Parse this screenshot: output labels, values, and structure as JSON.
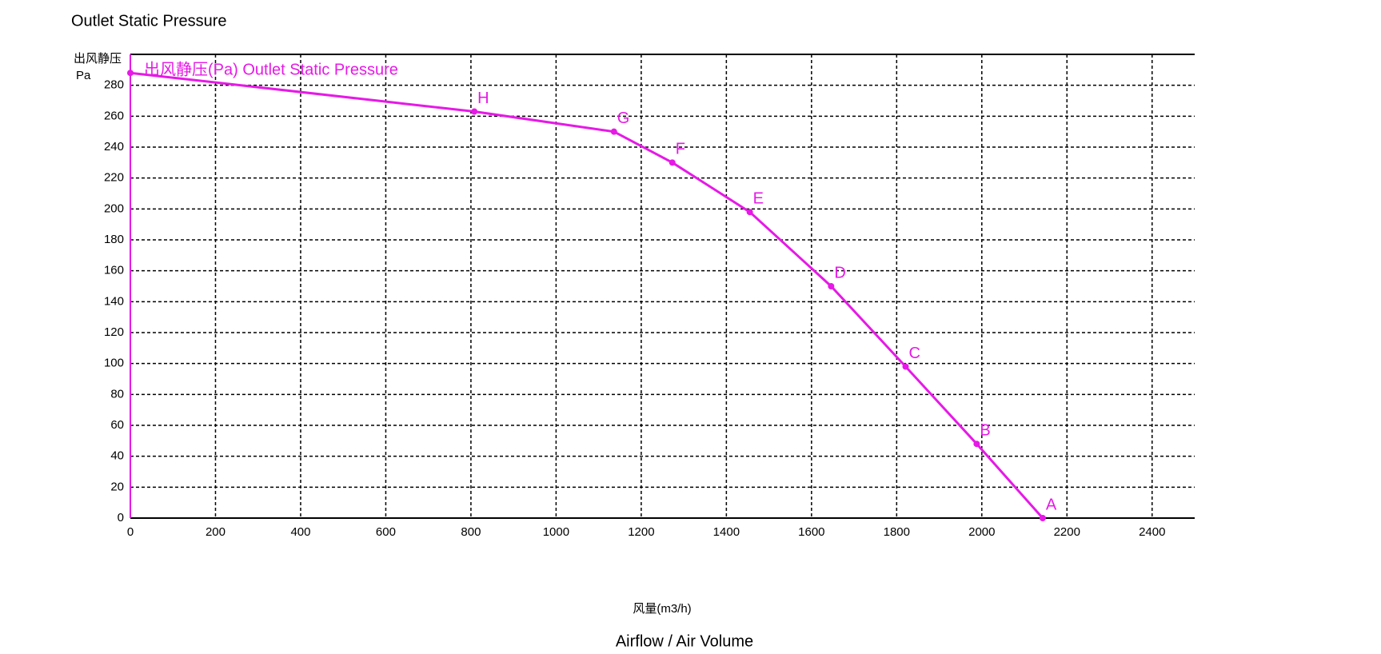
{
  "chart_data": {
    "type": "line",
    "title": "Outlet Static Pressure",
    "y_label": "出风静压",
    "y_unit": "Pa",
    "x_label": "风量(m3/h)",
    "subtitle": "Airflow / Air Volume",
    "series": [
      {
        "name": "出风静压(Pa) Outlet Static Pressure",
        "color": "#e619e6",
        "x": [
          0,
          808,
          1136,
          1273,
          1455,
          1646,
          1821,
          1988,
          2143
        ],
        "values": [
          288,
          263,
          250,
          230,
          198,
          150,
          98,
          48,
          0
        ],
        "point_labels": [
          null,
          "H",
          "G",
          "F",
          "E",
          "D",
          "C",
          "B",
          "A"
        ]
      }
    ],
    "xlim": [
      0,
      2500
    ],
    "xticks": [
      0,
      200,
      400,
      600,
      800,
      1000,
      1200,
      1400,
      1600,
      1800,
      2000,
      2200,
      2400
    ],
    "ylim": [
      0,
      300
    ],
    "yticks": [
      0,
      20,
      40,
      60,
      80,
      100,
      120,
      140,
      160,
      180,
      200,
      220,
      240,
      260,
      280
    ],
    "grid": true
  }
}
